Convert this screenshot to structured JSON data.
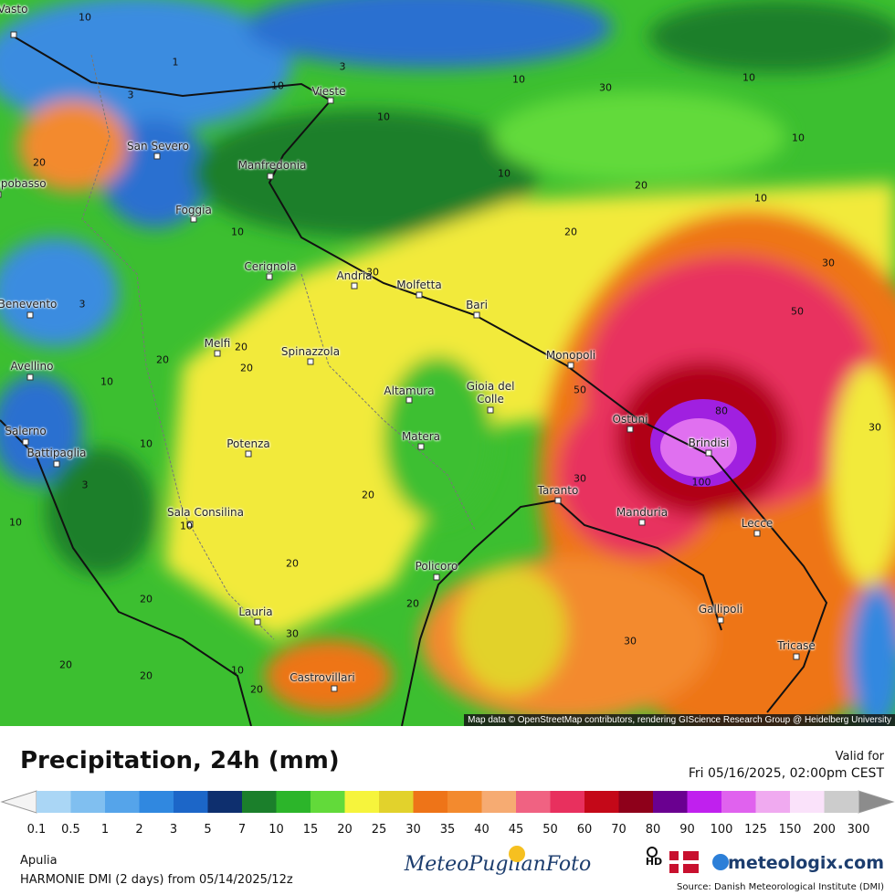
{
  "map": {
    "cities": [
      "Vasto",
      "Vieste",
      "San Severo",
      "Manfredonia",
      "Campobasso",
      "Foggia",
      "Cerignola",
      "Andria",
      "Molfetta",
      "Bari",
      "Benevento",
      "Melfi",
      "Spinazzola",
      "Monopoli",
      "Avellino",
      "Altamura",
      "Gioia del Colle",
      "Ostuni",
      "Brindisi",
      "Matera",
      "Salerno",
      "Battipaglia",
      "Potenza",
      "Taranto",
      "Manduria",
      "Sala Consilina",
      "Lecce",
      "Policoro",
      "Gallipoli",
      "Lauria",
      "Tricase",
      "Castrovillari"
    ],
    "contour_labels": [
      "10",
      "1",
      "3",
      "10",
      "3",
      "10",
      "10",
      "30",
      "10",
      "10",
      "20",
      "10",
      "20",
      "10",
      "20",
      "10",
      "30",
      "50",
      "3",
      "30",
      "20",
      "20",
      "20",
      "10",
      "50",
      "80",
      "100",
      "30",
      "10",
      "3",
      "20",
      "30",
      "10",
      "10",
      "20",
      "20",
      "20",
      "30",
      "30",
      "20",
      "20",
      "10",
      "20"
    ],
    "attribution": "Map data © OpenStreetMap contributors, rendering GIScience Research Group @ Heidelberg University"
  },
  "legend": {
    "title": "Precipitation, 24h (mm)",
    "valid_label": "Valid for",
    "valid_time": "Fri 05/16/2025, 02:00pm CEST",
    "ticks": [
      0.1,
      0.5,
      1,
      2,
      3,
      5,
      7,
      10,
      15,
      20,
      25,
      30,
      35,
      40,
      45,
      50,
      60,
      70,
      80,
      90,
      100,
      125,
      150,
      200,
      300
    ],
    "under_color": "#f4f4f4",
    "over_color": "#8c8c8c",
    "colors": [
      "#aad6f5",
      "#80bff0",
      "#55a4ea",
      "#3088e0",
      "#1c66c8",
      "#0e2f6e",
      "#1b7f2b",
      "#2cb52a",
      "#62da3a",
      "#f6f43c",
      "#e2d22c",
      "#ee7418",
      "#f38a2e",
      "#f6ab72",
      "#f06282",
      "#e8305e",
      "#c40818",
      "#8e001a",
      "#6a0090",
      "#c020ee",
      "#e062ee",
      "#f0aaf0",
      "#fae2fa",
      "#cccccc"
    ]
  },
  "footer": {
    "region": "Apulia",
    "model": "HARMONIE DMI (2 days) from 05/14/2025/12z",
    "logo": "MeteoPuglianFoto",
    "hd": "HD",
    "brand": "meteologix.com",
    "source": "Source: Danish Meteorological Institute (DMI)"
  }
}
